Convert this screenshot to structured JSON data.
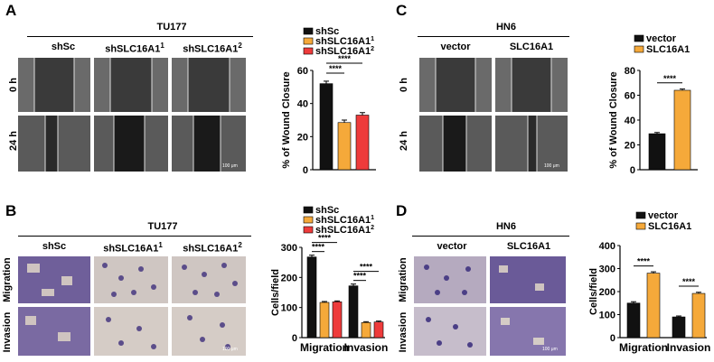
{
  "panels": {
    "A": {
      "letter": "A",
      "cell_line": "TU177",
      "groups": [
        "shSc",
        "shSLC16A1",
        "shSLC16A1"
      ],
      "group_sup": [
        "",
        "1",
        "2"
      ],
      "rows": [
        "0 h",
        "24 h"
      ],
      "scale_label": "100 μm"
    },
    "B": {
      "letter": "B",
      "cell_line": "TU177",
      "groups": [
        "shSc",
        "shSLC16A1",
        "shSLC16A1"
      ],
      "group_sup": [
        "",
        "1",
        "2"
      ],
      "rows": [
        "Migration",
        "Invasion"
      ],
      "scale_label": "100 μm"
    },
    "C": {
      "letter": "C",
      "cell_line": "HN6",
      "groups": [
        "vector",
        "SLC16A1"
      ],
      "rows": [
        "0 h",
        "24 h"
      ],
      "scale_label": "100 μm"
    },
    "D": {
      "letter": "D",
      "cell_line": "HN6",
      "groups": [
        "vector",
        "SLC16A1"
      ],
      "rows": [
        "Migration",
        "Invasion"
      ],
      "scale_label": "100 μm"
    }
  },
  "colors": {
    "black": "#111111",
    "orange": "#f5a93a",
    "red": "#ee3b3b"
  },
  "chart_data": [
    {
      "id": "A",
      "type": "bar",
      "ylabel": "% of Wound Closure",
      "ylim": [
        0,
        60
      ],
      "yticks": [
        0,
        20,
        40,
        60
      ],
      "legend": "top",
      "series": [
        {
          "name": "shSc",
          "sup": "",
          "color": "#111111",
          "value": 52,
          "err": 1.5
        },
        {
          "name": "shSLC16A1",
          "sup": "1",
          "color": "#f5a93a",
          "value": 28.5,
          "err": 1.5
        },
        {
          "name": "shSLC16A1",
          "sup": "2",
          "color": "#ee3b3b",
          "value": 33,
          "err": 1.5
        }
      ],
      "significance": [
        {
          "from": 0,
          "to": 1,
          "label": "****"
        },
        {
          "from": 0,
          "to": 2,
          "label": "****"
        }
      ]
    },
    {
      "id": "B",
      "type": "bar",
      "ylabel": "Cells/field",
      "ylim": [
        0,
        300
      ],
      "yticks": [
        0,
        100,
        200,
        300
      ],
      "categories": [
        "Migration",
        "Invasion"
      ],
      "legend": "top",
      "series": [
        {
          "name": "shSc",
          "sup": "",
          "color": "#111111",
          "values": [
            268,
            172
          ],
          "errs": [
            6,
            6
          ]
        },
        {
          "name": "shSLC16A1",
          "sup": "1",
          "color": "#f5a93a",
          "values": [
            117,
            50
          ],
          "errs": [
            3,
            3
          ]
        },
        {
          "name": "shSLC16A1",
          "sup": "2",
          "color": "#ee3b3b",
          "values": [
            119,
            52
          ],
          "errs": [
            3,
            3
          ]
        }
      ],
      "significance": [
        {
          "category": 0,
          "from": 0,
          "to": 1,
          "label": "****"
        },
        {
          "category": 0,
          "from": 0,
          "to": 2,
          "label": "****"
        },
        {
          "category": 1,
          "from": 0,
          "to": 1,
          "label": "****"
        },
        {
          "category": 1,
          "from": 0,
          "to": 2,
          "label": "****"
        }
      ]
    },
    {
      "id": "C",
      "type": "bar",
      "ylabel": "% of Wound Closure",
      "ylim": [
        0,
        80
      ],
      "yticks": [
        0,
        20,
        40,
        60,
        80
      ],
      "legend": "top",
      "series": [
        {
          "name": "vector",
          "color": "#111111",
          "value": 29,
          "err": 1
        },
        {
          "name": "SLC16A1",
          "color": "#f5a93a",
          "value": 64,
          "err": 1
        }
      ],
      "significance": [
        {
          "from": 0,
          "to": 1,
          "label": "****"
        }
      ]
    },
    {
      "id": "D",
      "type": "bar",
      "ylabel": "Cells/field",
      "ylim": [
        0,
        400
      ],
      "yticks": [
        0,
        100,
        200,
        300,
        400
      ],
      "categories": [
        "Migration",
        "Invasion"
      ],
      "legend": "top",
      "series": [
        {
          "name": "vector",
          "color": "#111111",
          "values": [
            150,
            90
          ],
          "errs": [
            6,
            4
          ]
        },
        {
          "name": "SLC16A1",
          "color": "#f5a93a",
          "values": [
            280,
            192
          ],
          "errs": [
            6,
            5
          ]
        }
      ],
      "significance": [
        {
          "category": 0,
          "from": 0,
          "to": 1,
          "label": "****"
        },
        {
          "category": 1,
          "from": 0,
          "to": 1,
          "label": "****"
        }
      ]
    }
  ]
}
